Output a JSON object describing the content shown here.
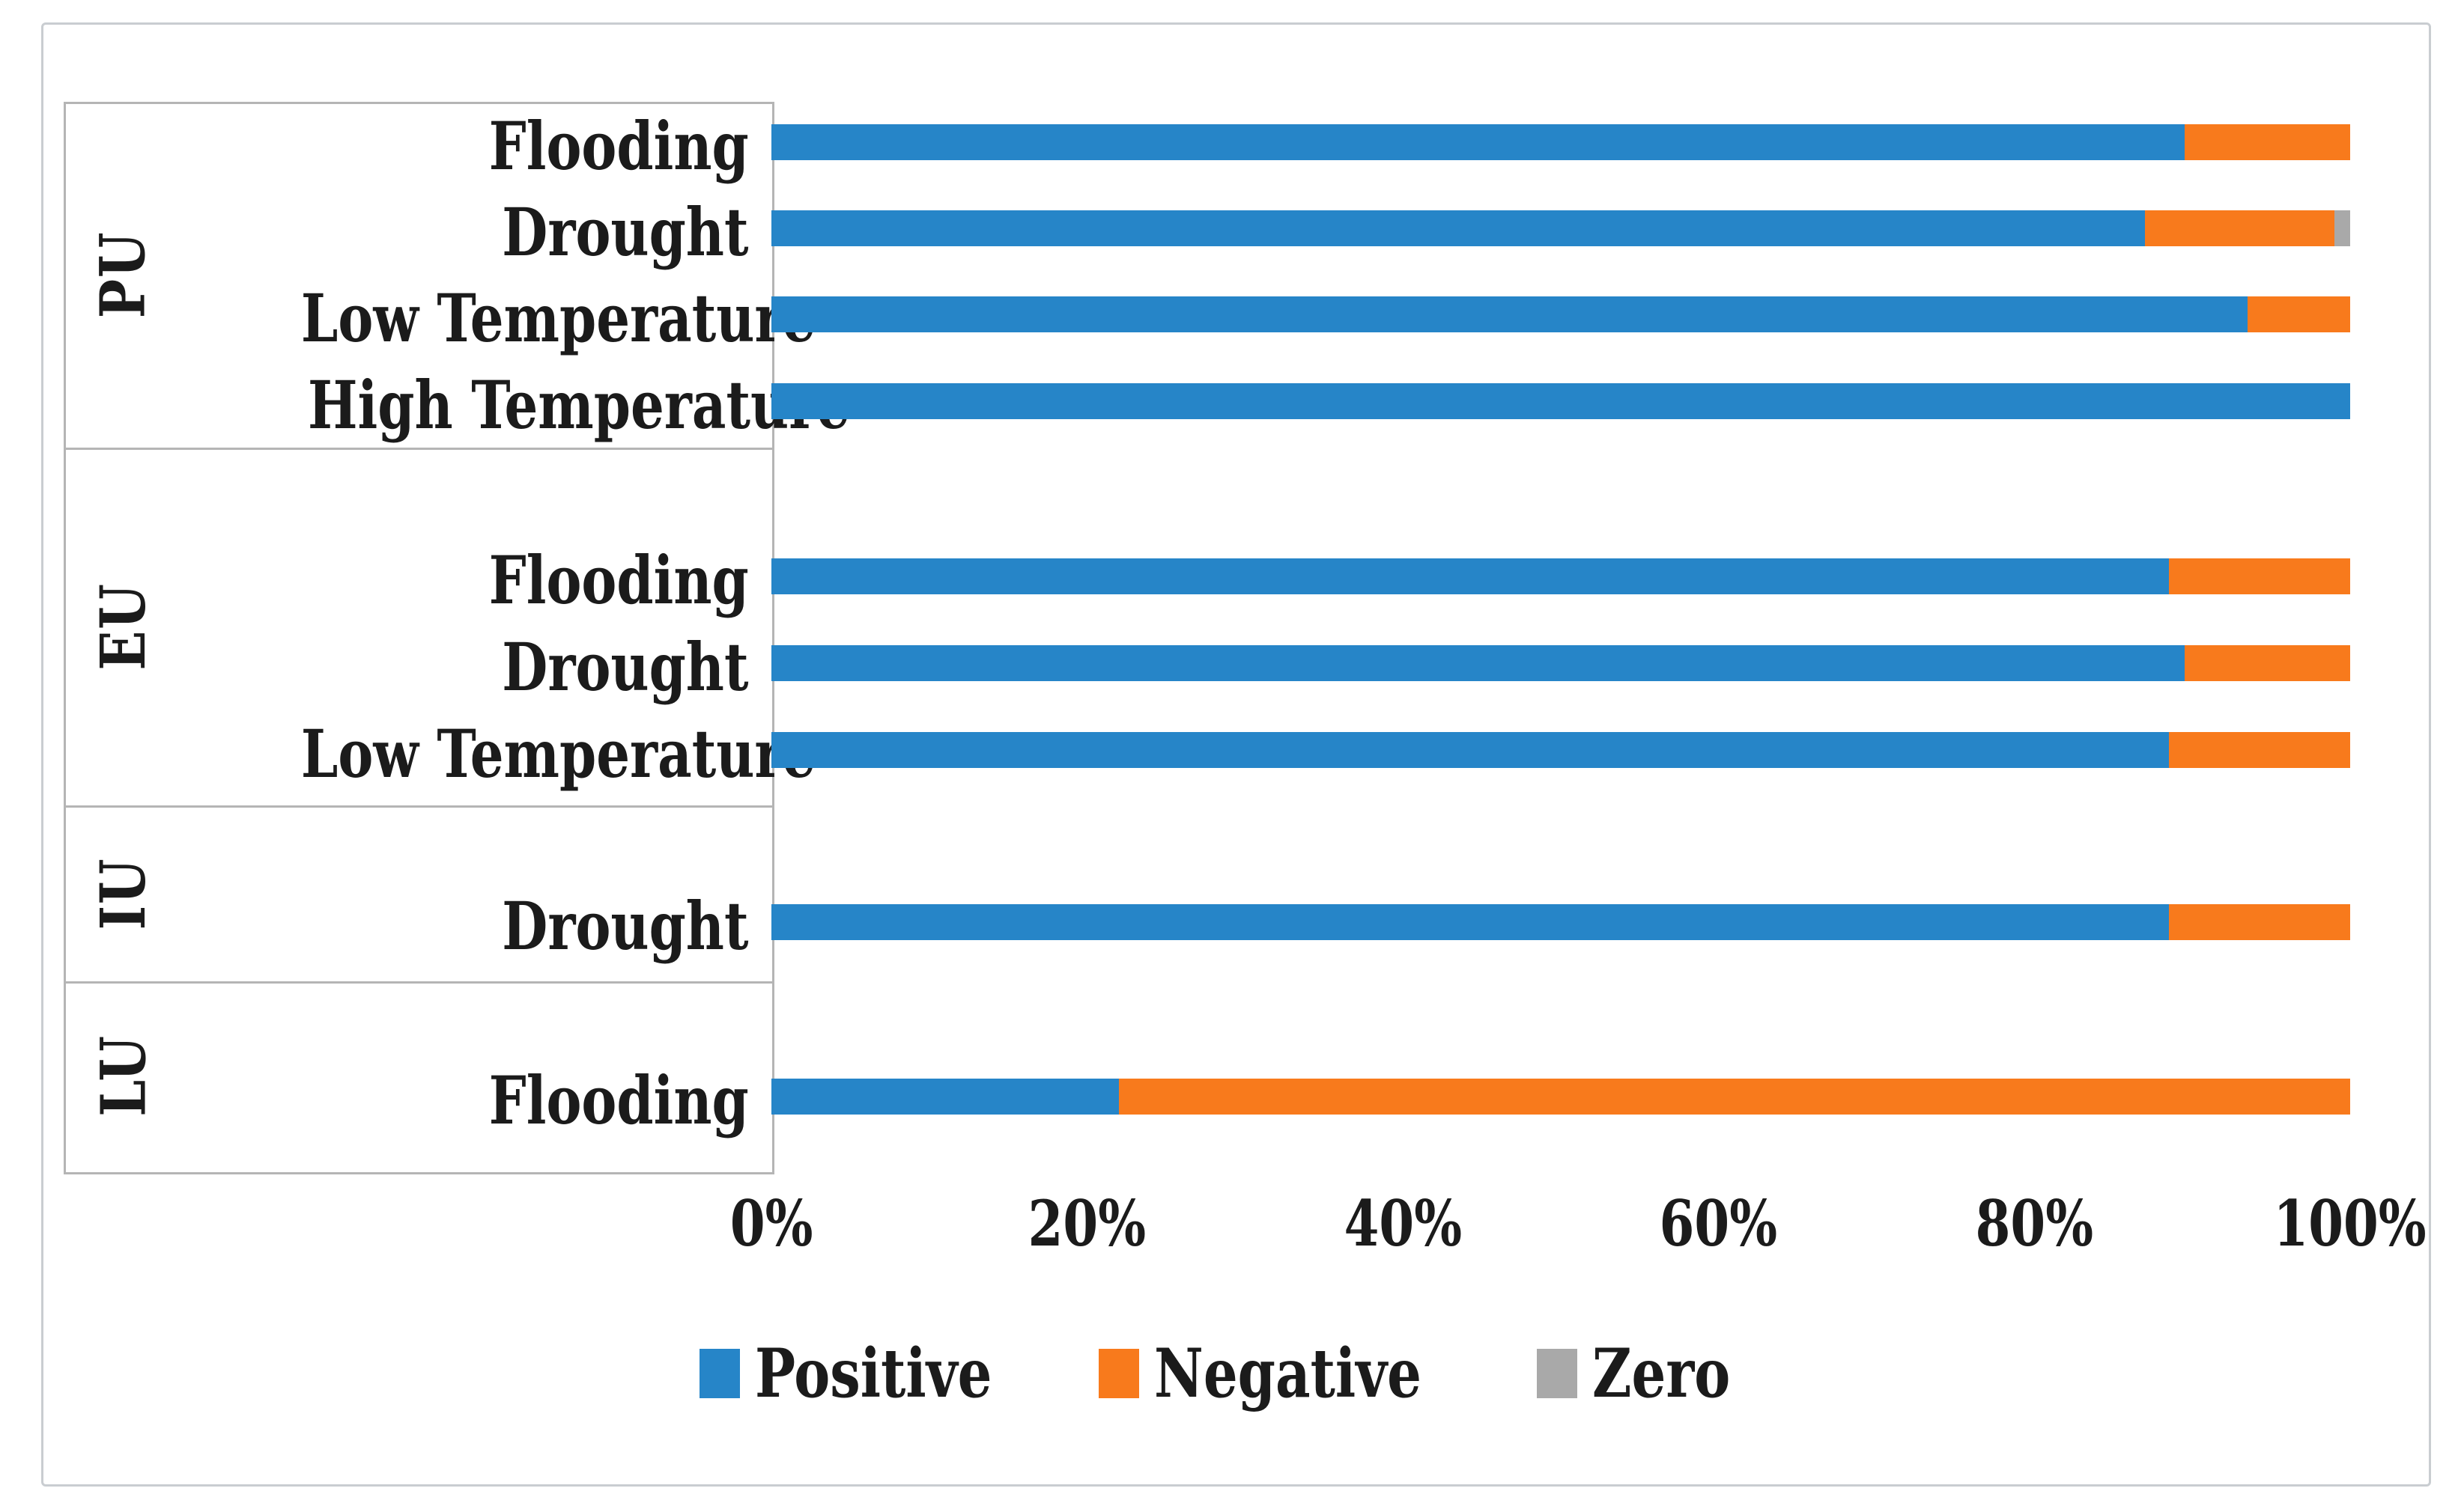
{
  "legend": {
    "items": [
      {
        "label": "Positive",
        "color": "#2685C8"
      },
      {
        "label": "Negative",
        "color": "#F87A1C"
      },
      {
        "label": "Zero",
        "color": "#A9A9A9"
      }
    ]
  },
  "colors": {
    "positive": "#2685C8",
    "negative": "#F87A1C",
    "zero": "#A9A9A9",
    "panel_line": "#b5b5b5",
    "frame_border": "#c9cdd1",
    "text": "#1b1b1b"
  },
  "chart_data": {
    "type": "bar",
    "orientation": "horizontal",
    "stacked": true,
    "unit": "percent",
    "xlim": [
      0,
      100
    ],
    "x_ticks": [
      "0%",
      "20%",
      "40%",
      "60%",
      "80%",
      "100%"
    ],
    "series_names": [
      "Positive",
      "Negative",
      "Zero"
    ],
    "legend_position": "bottom",
    "grid": false,
    "groups": [
      {
        "group": "PU",
        "rows": [
          {
            "category": "Flooding",
            "values": {
              "Positive": 89.5,
              "Negative": 10.5,
              "Zero": 0
            }
          },
          {
            "category": "Drought",
            "values": {
              "Positive": 87,
              "Negative": 12,
              "Zero": 1
            }
          },
          {
            "category": "Low Temperature",
            "values": {
              "Positive": 93.5,
              "Negative": 6.5,
              "Zero": 0
            }
          },
          {
            "category": "High Temperature",
            "values": {
              "Positive": 100,
              "Negative": 0,
              "Zero": 0
            }
          }
        ]
      },
      {
        "group": "EU",
        "rows": [
          {
            "category": "Flooding",
            "values": {
              "Positive": 88.5,
              "Negative": 11.5,
              "Zero": 0
            }
          },
          {
            "category": "Drought",
            "values": {
              "Positive": 89.5,
              "Negative": 10.5,
              "Zero": 0
            }
          },
          {
            "category": "Low Temperature",
            "values": {
              "Positive": 88.5,
              "Negative": 11.5,
              "Zero": 0
            }
          }
        ]
      },
      {
        "group": "IU",
        "rows": [
          {
            "category": "Drought",
            "values": {
              "Positive": 88.5,
              "Negative": 11.5,
              "Zero": 0
            }
          }
        ]
      },
      {
        "group": "LU",
        "rows": [
          {
            "category": "Flooding",
            "values": {
              "Positive": 22,
              "Negative": 78,
              "Zero": 0
            }
          }
        ]
      }
    ]
  }
}
